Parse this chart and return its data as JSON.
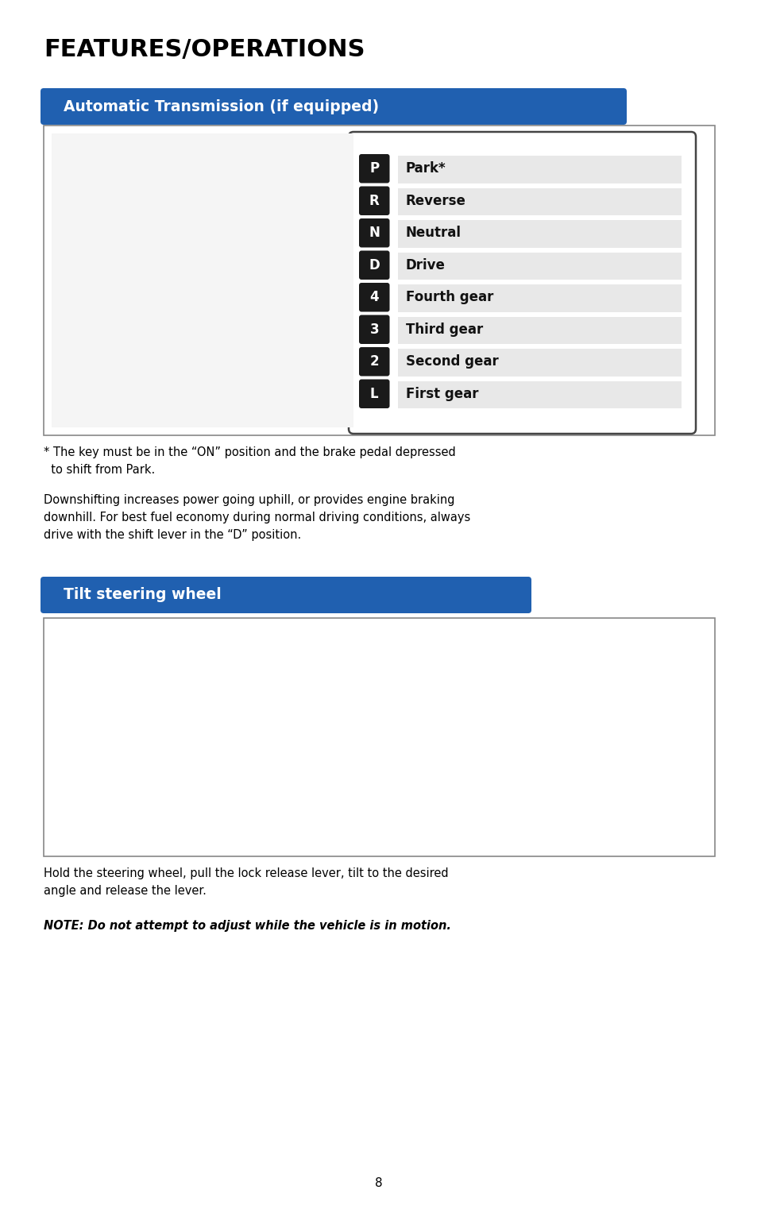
{
  "page_title": "FEATURES/OPERATIONS",
  "section1_title": "Automatic Transmission (if equipped)",
  "section1_title_bg": "#2060b0",
  "section1_title_color": "#ffffff",
  "gear_labels": [
    "P",
    "R",
    "N",
    "D",
    "4",
    "3",
    "2",
    "L"
  ],
  "gear_names": [
    "Park*",
    "Reverse",
    "Neutral",
    "Drive",
    "Fourth gear",
    "Third gear",
    "Second gear",
    "First gear"
  ],
  "gear_label_bg": "#1a1a1a",
  "gear_label_color": "#ffffff",
  "gear_row_bg": "#e8e8e8",
  "footnote1": "* The key must be in the “ON” position and the brake pedal depressed\n  to shift from Park.",
  "para1": "Downshifting increases power going uphill, or provides engine braking\ndownhill. For best fuel economy during normal driving conditions, always\ndrive with the shift lever in the “D” position.",
  "section2_title": "Tilt steering wheel",
  "section2_title_bg": "#2060b0",
  "section2_title_color": "#ffffff",
  "footnote2": "Hold the steering wheel, pull the lock release lever, tilt to the desired\nangle and release the lever.",
  "note": "NOTE: Do not attempt to adjust while the vehicle is in motion.",
  "page_number": "8",
  "bg_color": "#ffffff",
  "text_color": "#000000"
}
